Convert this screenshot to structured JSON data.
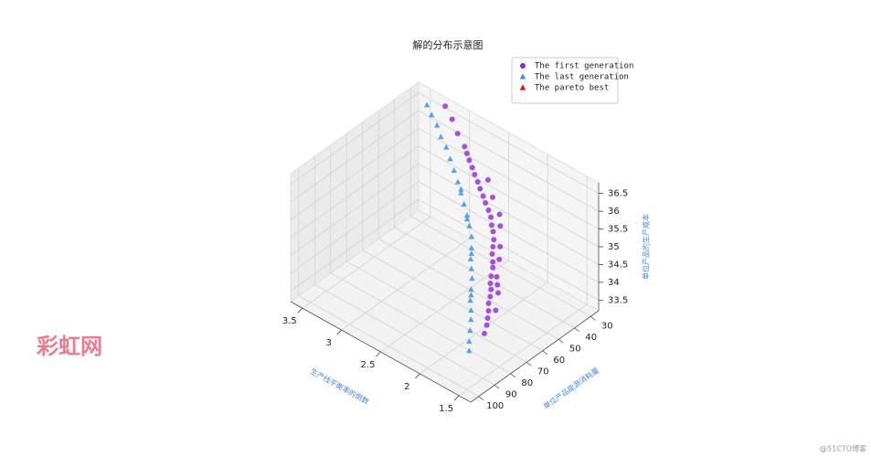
{
  "chart_data": {
    "type": "scatter3d",
    "title": "解的分布示意图",
    "xlabel": "生产线平衡率的倒数",
    "ylabel": "单位产品能源消耗量",
    "zlabel": "单位产品的生产成本",
    "xlim": [
      1.35,
      3.65
    ],
    "ylim": [
      25,
      105
    ],
    "zlim": [
      33.2,
      36.8
    ],
    "xticks": [
      1.5,
      2.0,
      2.5,
      3.0,
      3.5
    ],
    "yticks": [
      30,
      40,
      50,
      60,
      70,
      80,
      90,
      100
    ],
    "zticks": [
      33.5,
      34.0,
      34.5,
      35.0,
      35.5,
      36.0,
      36.5
    ],
    "grid": true,
    "legend": "upper right",
    "series": [
      {
        "name": "The first generation",
        "color": "#9424d8",
        "marker": "circle",
        "x": [
          1.87,
          1.9,
          1.93,
          1.96,
          2.0,
          2.02,
          2.05,
          2.08,
          2.11,
          2.15,
          2.17,
          2.22,
          2.25,
          2.28,
          2.33,
          2.37,
          2.42,
          2.47,
          2.53,
          2.58,
          2.64,
          2.69,
          2.75,
          2.8,
          2.86,
          2.91,
          2.96,
          3.07,
          3.18,
          3.29,
          2.1,
          2.3,
          2.0,
          2.5,
          2.2,
          1.95,
          2.6,
          2.35,
          2.15,
          2.05
        ],
        "y": [
          71,
          68,
          66,
          64,
          62,
          60,
          58,
          57,
          55,
          52,
          51,
          49,
          47,
          45,
          43,
          42,
          40,
          39,
          38,
          37,
          36,
          35,
          34,
          33,
          32,
          31,
          30,
          29,
          27,
          26,
          52,
          40,
          56,
          35,
          45,
          60,
          33,
          38,
          48,
          54
        ],
        "z": [
          33.4,
          33.5,
          33.6,
          33.7,
          33.8,
          33.9,
          34.0,
          34.1,
          34.2,
          34.3,
          34.4,
          34.5,
          34.6,
          34.7,
          34.8,
          34.9,
          35.0,
          35.1,
          35.2,
          35.3,
          35.4,
          35.5,
          35.6,
          35.7,
          35.8,
          35.9,
          36.0,
          36.2,
          36.4,
          36.6,
          34.1,
          34.9,
          33.9,
          35.3,
          34.6,
          33.6,
          35.6,
          35.1,
          34.4,
          34.0
        ]
      },
      {
        "name": "The last generation",
        "color": "#2f8fe0",
        "marker": "triangle",
        "x": [
          1.84,
          1.88,
          1.93,
          1.98,
          2.02,
          2.07,
          2.12,
          2.17,
          2.22,
          2.27,
          2.32,
          2.38,
          2.45,
          2.52,
          2.6,
          2.68,
          2.76,
          2.85,
          2.94,
          3.03,
          3.12,
          3.21,
          3.3,
          3.38,
          2.3,
          2.5,
          2.1,
          2.7
        ],
        "y": [
          82,
          80,
          77,
          74,
          72,
          70,
          67,
          64,
          62,
          60,
          57,
          54,
          52,
          50,
          48,
          46,
          44,
          42,
          40,
          38,
          37,
          35,
          34,
          33,
          58,
          51,
          68,
          45
        ],
        "z": [
          33.3,
          33.45,
          33.6,
          33.75,
          33.9,
          34.05,
          34.2,
          34.35,
          34.5,
          34.65,
          34.8,
          34.95,
          35.1,
          35.25,
          35.4,
          35.55,
          35.7,
          35.85,
          36.0,
          36.15,
          36.3,
          36.45,
          36.6,
          36.75,
          34.7,
          35.2,
          34.1,
          35.6
        ]
      },
      {
        "name": "The pareto best",
        "color": "#ff0000",
        "marker": "triangle",
        "x": [],
        "y": [],
        "z": []
      }
    ]
  },
  "watermarks": [
    "彩虹网",
    "@51CTO博客"
  ]
}
